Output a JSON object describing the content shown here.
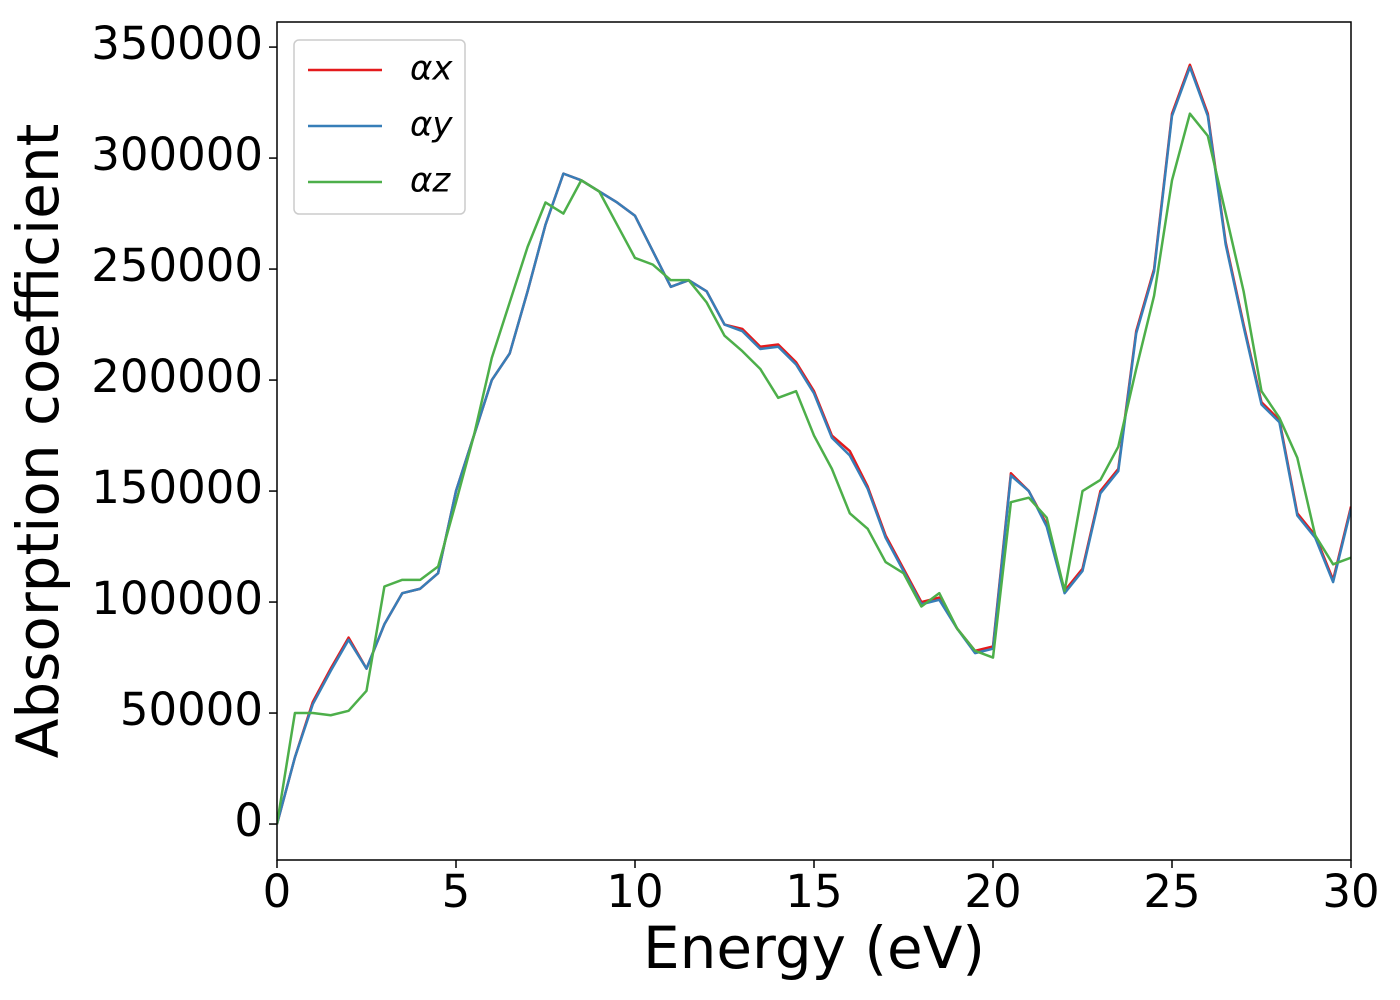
{
  "chart_data": {
    "type": "line",
    "xlabel": "Energy (eV)",
    "ylabel": "Absorption coefficient",
    "x": [
      0,
      0.5,
      1,
      1.5,
      2,
      2.5,
      3,
      3.5,
      4,
      4.5,
      5,
      5.5,
      6,
      6.5,
      7,
      7.5,
      8,
      8.5,
      9,
      9.5,
      10,
      10.5,
      11,
      11.5,
      12,
      12.5,
      13,
      13.5,
      14,
      14.5,
      15,
      15.5,
      16,
      16.5,
      17,
      17.5,
      18,
      18.5,
      19,
      19.5,
      20,
      20.5,
      21,
      21.5,
      22,
      22.5,
      23,
      23.5,
      24,
      24.5,
      25,
      25.5,
      26,
      26.5,
      27,
      27.5,
      28,
      28.5,
      29,
      29.5,
      30
    ],
    "series": [
      {
        "name": "αx",
        "color": "#e41a1c",
        "values": [
          0,
          30000,
          55000,
          70000,
          84000,
          70000,
          90000,
          104000,
          106000,
          113000,
          150000,
          175000,
          200000,
          212000,
          240000,
          270000,
          293000,
          290000,
          285000,
          280000,
          274000,
          258000,
          242000,
          245000,
          240000,
          225000,
          223000,
          215000,
          216000,
          208000,
          195000,
          175000,
          168000,
          152000,
          130000,
          115000,
          100000,
          102000,
          88000,
          78000,
          80000,
          158000,
          150000,
          135000,
          105000,
          115000,
          150000,
          160000,
          222000,
          250000,
          320000,
          342000,
          320000,
          262000,
          225000,
          190000,
          182000,
          140000,
          130000,
          110000,
          143000
        ]
      },
      {
        "name": "αy",
        "color": "#377eb8",
        "values": [
          0,
          30000,
          54000,
          69000,
          83000,
          70000,
          90000,
          104000,
          106000,
          113000,
          150000,
          175000,
          200000,
          212000,
          240000,
          270000,
          293000,
          290000,
          285000,
          280000,
          274000,
          258000,
          242000,
          245000,
          240000,
          225000,
          222000,
          214000,
          215000,
          207000,
          194000,
          174000,
          166000,
          151000,
          129000,
          114000,
          99000,
          101000,
          88000,
          77000,
          79000,
          157000,
          150000,
          134000,
          104000,
          114000,
          149000,
          159000,
          221000,
          249000,
          319000,
          341000,
          319000,
          261000,
          224000,
          189000,
          181000,
          139000,
          129000,
          109000,
          142000
        ]
      },
      {
        "name": "αz",
        "color": "#4daf4a",
        "values": [
          0,
          50000,
          50000,
          49000,
          51000,
          60000,
          107000,
          110000,
          110000,
          116000,
          145000,
          175000,
          210000,
          235000,
          260000,
          280000,
          275000,
          290000,
          285000,
          270000,
          255000,
          252000,
          245000,
          245000,
          235000,
          220000,
          213000,
          205000,
          192000,
          195000,
          175000,
          160000,
          140000,
          133000,
          118000,
          113000,
          98000,
          104000,
          88000,
          78000,
          75000,
          145000,
          147000,
          138000,
          105000,
          150000,
          155000,
          170000,
          205000,
          238000,
          290000,
          320000,
          310000,
          275000,
          240000,
          195000,
          183000,
          165000,
          130000,
          117000,
          120000
        ]
      }
    ],
    "xlim": [
      0,
      30
    ],
    "xticks": [
      0,
      5,
      10,
      15,
      20,
      25,
      30
    ],
    "ylim": [
      -16200,
      361300
    ],
    "yticks": [
      0,
      50000,
      100000,
      150000,
      200000,
      250000,
      300000,
      350000
    ],
    "legend": "upper left"
  }
}
